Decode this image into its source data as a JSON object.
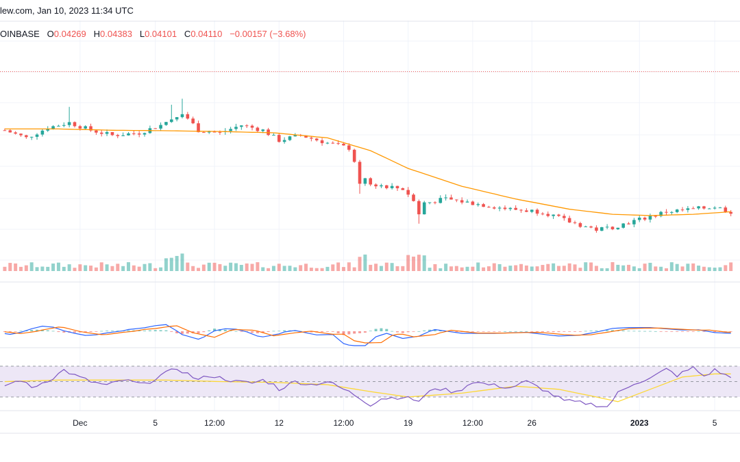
{
  "header": {
    "source": "lew.com, Jan 10, 2023 11:34 UTC"
  },
  "legend": {
    "exchange": "OINBASE",
    "open_label": "O",
    "open": "0.04269",
    "high_label": "H",
    "high": "0.04383",
    "low_label": "L",
    "low": "0.04101",
    "close_label": "C",
    "close": "0.04110",
    "change": "−0.00157 (−3.68%)"
  },
  "colors": {
    "up": "#26a69a",
    "down": "#ef5350",
    "ma": "#ff9800",
    "macd": "#2962ff",
    "signal": "#ff6d00",
    "rsi": "#7e57c2",
    "rsi_ma": "#fdd835",
    "rsi_band": "#ede7f6",
    "grid": "#f0f3fa",
    "dotted_line": "#ef5350"
  },
  "chart_data": {
    "type": "candlestick",
    "x_ticks": [
      {
        "label": "Dec",
        "idx": 14
      },
      {
        "label": "5",
        "idx": 28
      },
      {
        "label": "12:00",
        "idx": 39
      },
      {
        "label": "12",
        "idx": 51
      },
      {
        "label": "12:00",
        "idx": 63
      },
      {
        "label": "19",
        "idx": 75
      },
      {
        "label": "12:00",
        "idx": 87
      },
      {
        "label": "26",
        "idx": 98
      },
      {
        "label": "2023",
        "idx": 118,
        "bold": true
      },
      {
        "label": "5",
        "idx": 132
      }
    ],
    "price_path": [
      [
        0,
        0.0455
      ],
      [
        4,
        0.0452
      ],
      [
        8,
        0.0456
      ],
      [
        12,
        0.0458
      ],
      [
        16,
        0.0455
      ],
      [
        20,
        0.0453
      ],
      [
        25,
        0.0454
      ],
      [
        29,
        0.0457
      ],
      [
        33,
        0.0462
      ],
      [
        36,
        0.0455
      ],
      [
        40,
        0.0454
      ],
      [
        44,
        0.0457
      ],
      [
        48,
        0.0455
      ],
      [
        51,
        0.0451
      ],
      [
        55,
        0.0453
      ],
      [
        60,
        0.045
      ],
      [
        64,
        0.0448
      ],
      [
        66,
        0.0438
      ],
      [
        68,
        0.0434
      ],
      [
        74,
        0.0432
      ],
      [
        77,
        0.0426
      ],
      [
        82,
        0.0428
      ],
      [
        88,
        0.0426
      ],
      [
        94,
        0.0424
      ],
      [
        100,
        0.0423
      ],
      [
        105,
        0.0419
      ],
      [
        110,
        0.0416
      ],
      [
        113,
        0.0417
      ],
      [
        118,
        0.042
      ],
      [
        123,
        0.0423
      ],
      [
        128,
        0.0424
      ],
      [
        132,
        0.0425
      ],
      [
        135,
        0.0423
      ]
    ],
    "ma_path": [
      [
        0,
        0.04555
      ],
      [
        10,
        0.04555
      ],
      [
        20,
        0.0455
      ],
      [
        30,
        0.04548
      ],
      [
        40,
        0.04545
      ],
      [
        50,
        0.0454
      ],
      [
        60,
        0.0452
      ],
      [
        68,
        0.0447
      ],
      [
        75,
        0.044
      ],
      [
        85,
        0.0433
      ],
      [
        95,
        0.0428
      ],
      [
        105,
        0.0424
      ],
      [
        113,
        0.0422
      ],
      [
        120,
        0.04215
      ],
      [
        128,
        0.0422
      ],
      [
        135,
        0.0423
      ]
    ],
    "spikes_up": [
      12,
      31,
      33
    ],
    "spikes_down": [
      66,
      77
    ],
    "volume_peaks": [
      30,
      32,
      66,
      75,
      77
    ],
    "dotted_line_price": 0.0478,
    "price_ylim": [
      0.04,
      0.049
    ],
    "rsi_levels": [
      70,
      30
    ],
    "rsi_path": [
      [
        0,
        45
      ],
      [
        3,
        52
      ],
      [
        5,
        42
      ],
      [
        9,
        55
      ],
      [
        11,
        65
      ],
      [
        13,
        58
      ],
      [
        16,
        50
      ],
      [
        19,
        45
      ],
      [
        22,
        52
      ],
      [
        26,
        46
      ],
      [
        29,
        58
      ],
      [
        32,
        67
      ],
      [
        34,
        60
      ],
      [
        36,
        52
      ],
      [
        38,
        58
      ],
      [
        40,
        55
      ],
      [
        43,
        50
      ],
      [
        46,
        48
      ],
      [
        48,
        52
      ],
      [
        50,
        46
      ],
      [
        51,
        40
      ],
      [
        54,
        50
      ],
      [
        57,
        46
      ],
      [
        60,
        50
      ],
      [
        63,
        40
      ],
      [
        65,
        33
      ],
      [
        68,
        20
      ],
      [
        70,
        28
      ],
      [
        74,
        30
      ],
      [
        77,
        25
      ],
      [
        80,
        42
      ],
      [
        84,
        36
      ],
      [
        87,
        50
      ],
      [
        90,
        46
      ],
      [
        94,
        42
      ],
      [
        97,
        50
      ],
      [
        100,
        40
      ],
      [
        104,
        25
      ],
      [
        108,
        22
      ],
      [
        112,
        17
      ],
      [
        114,
        35
      ],
      [
        117,
        48
      ],
      [
        120,
        54
      ],
      [
        123,
        66
      ],
      [
        125,
        58
      ],
      [
        128,
        68
      ],
      [
        130,
        57
      ],
      [
        132,
        65
      ],
      [
        135,
        55
      ]
    ],
    "rsi_ma_path": [
      [
        0,
        50
      ],
      [
        10,
        52
      ],
      [
        20,
        52
      ],
      [
        30,
        52
      ],
      [
        40,
        50
      ],
      [
        50,
        49
      ],
      [
        60,
        46
      ],
      [
        68,
        37
      ],
      [
        75,
        30
      ],
      [
        85,
        35
      ],
      [
        95,
        44
      ],
      [
        103,
        40
      ],
      [
        110,
        30
      ],
      [
        114,
        24
      ],
      [
        120,
        40
      ],
      [
        126,
        56
      ],
      [
        132,
        60
      ],
      [
        135,
        60
      ]
    ]
  }
}
